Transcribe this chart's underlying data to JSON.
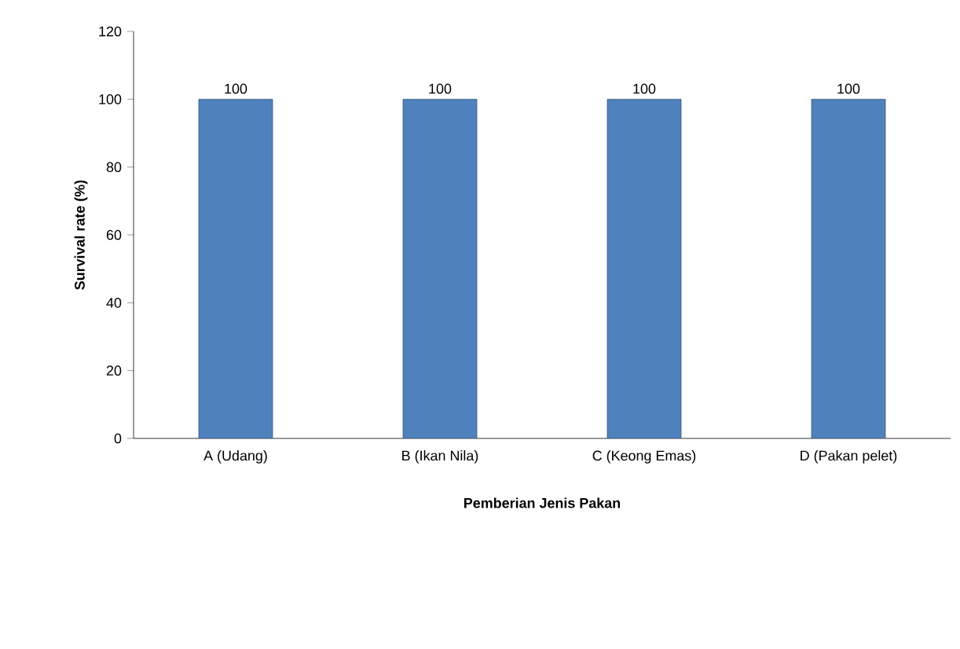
{
  "chart_data": {
    "type": "bar",
    "categories": [
      "A (Udang)",
      "B (Ikan Nila)",
      "C (Keong Emas)",
      "D (Pakan pelet)"
    ],
    "values": [
      100,
      100,
      100,
      100
    ],
    "color": "#4f81bd",
    "xlabel": "Pemberian Jenis Pakan",
    "ylabel": "Survival rate (%)",
    "ylim": [
      0,
      120
    ],
    "yticks": [
      0,
      20,
      40,
      60,
      80,
      100,
      120
    ],
    "data_labels": true
  }
}
